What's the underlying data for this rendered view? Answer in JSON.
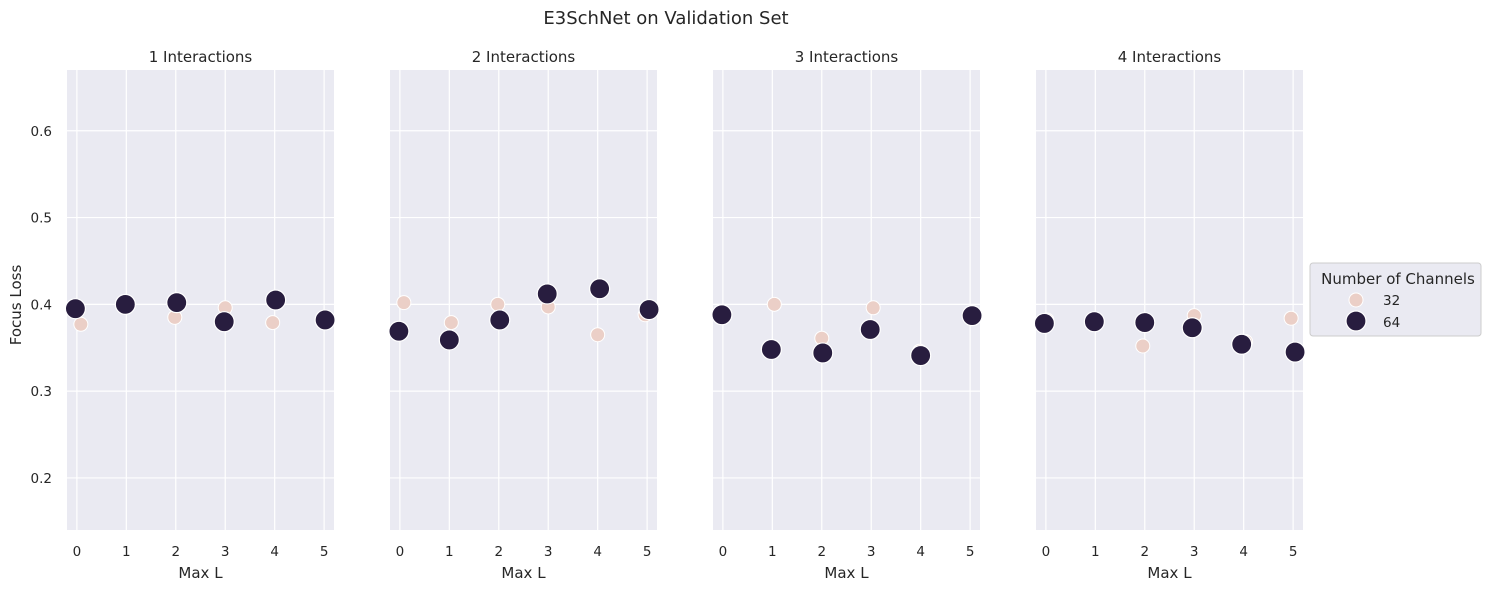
{
  "chart_data": {
    "type": "scatter",
    "title": "E3SchNet on Validation Set",
    "xlabel": "Max L",
    "ylabel": "Focus Loss",
    "x_ticks": [
      0,
      1,
      2,
      3,
      4,
      5
    ],
    "y_ticks": [
      0.2,
      0.3,
      0.4,
      0.5,
      0.6
    ],
    "xlim": [
      -0.2,
      5.2
    ],
    "ylim": [
      0.14,
      0.67
    ],
    "grid": true,
    "legend": {
      "title": "Number of Channels",
      "placement": "right",
      "entries": [
        "32",
        "64"
      ]
    },
    "series_colors": {
      "32": "#ebcfc7",
      "64": "#281d3f"
    },
    "panels": [
      {
        "title": "1 Interactions",
        "series": [
          {
            "name": "32",
            "points": [
              [
                0.08,
                0.377
              ],
              [
                1.0,
                0.401
              ],
              [
                1.98,
                0.385
              ],
              [
                3.0,
                0.396
              ],
              [
                3.96,
                0.379
              ],
              [
                5.0,
                0.381
              ]
            ]
          },
          {
            "name": "64",
            "points": [
              [
                -0.03,
                0.395
              ],
              [
                0.98,
                0.4
              ],
              [
                2.02,
                0.402
              ],
              [
                2.98,
                0.38
              ],
              [
                4.02,
                0.405
              ],
              [
                5.02,
                0.382
              ]
            ]
          }
        ]
      },
      {
        "title": "2 Interactions",
        "series": [
          {
            "name": "32",
            "points": [
              [
                0.08,
                0.402
              ],
              [
                1.04,
                0.379
              ],
              [
                1.98,
                0.4
              ],
              [
                3.0,
                0.397
              ],
              [
                4.0,
                0.365
              ],
              [
                4.96,
                0.388
              ]
            ]
          },
          {
            "name": "64",
            "points": [
              [
                -0.02,
                0.369
              ],
              [
                1.0,
                0.359
              ],
              [
                2.02,
                0.382
              ],
              [
                2.98,
                0.412
              ],
              [
                4.04,
                0.418
              ],
              [
                5.04,
                0.394
              ]
            ]
          }
        ]
      },
      {
        "title": "3 Interactions",
        "series": [
          {
            "name": "32",
            "points": [
              [
                0.04,
                0.389
              ],
              [
                1.04,
                0.4
              ],
              [
                2.0,
                0.361
              ],
              [
                3.04,
                0.396
              ],
              [
                3.98,
                0.346
              ],
              [
                5.02,
                0.386
              ]
            ]
          },
          {
            "name": "64",
            "points": [
              [
                -0.02,
                0.388
              ],
              [
                0.98,
                0.348
              ],
              [
                2.02,
                0.344
              ],
              [
                2.98,
                0.371
              ],
              [
                4.0,
                0.341
              ],
              [
                5.04,
                0.387
              ]
            ]
          }
        ]
      },
      {
        "title": "4 Interactions",
        "series": [
          {
            "name": "32",
            "points": [
              [
                0.02,
                0.382
              ],
              [
                1.04,
                0.381
              ],
              [
                1.96,
                0.352
              ],
              [
                3.0,
                0.387
              ],
              [
                4.04,
                0.357
              ],
              [
                4.96,
                0.384
              ]
            ]
          },
          {
            "name": "64",
            "points": [
              [
                -0.03,
                0.378
              ],
              [
                0.98,
                0.38
              ],
              [
                2.0,
                0.379
              ],
              [
                2.96,
                0.373
              ],
              [
                3.96,
                0.354
              ],
              [
                5.04,
                0.345
              ]
            ]
          }
        ]
      }
    ]
  }
}
